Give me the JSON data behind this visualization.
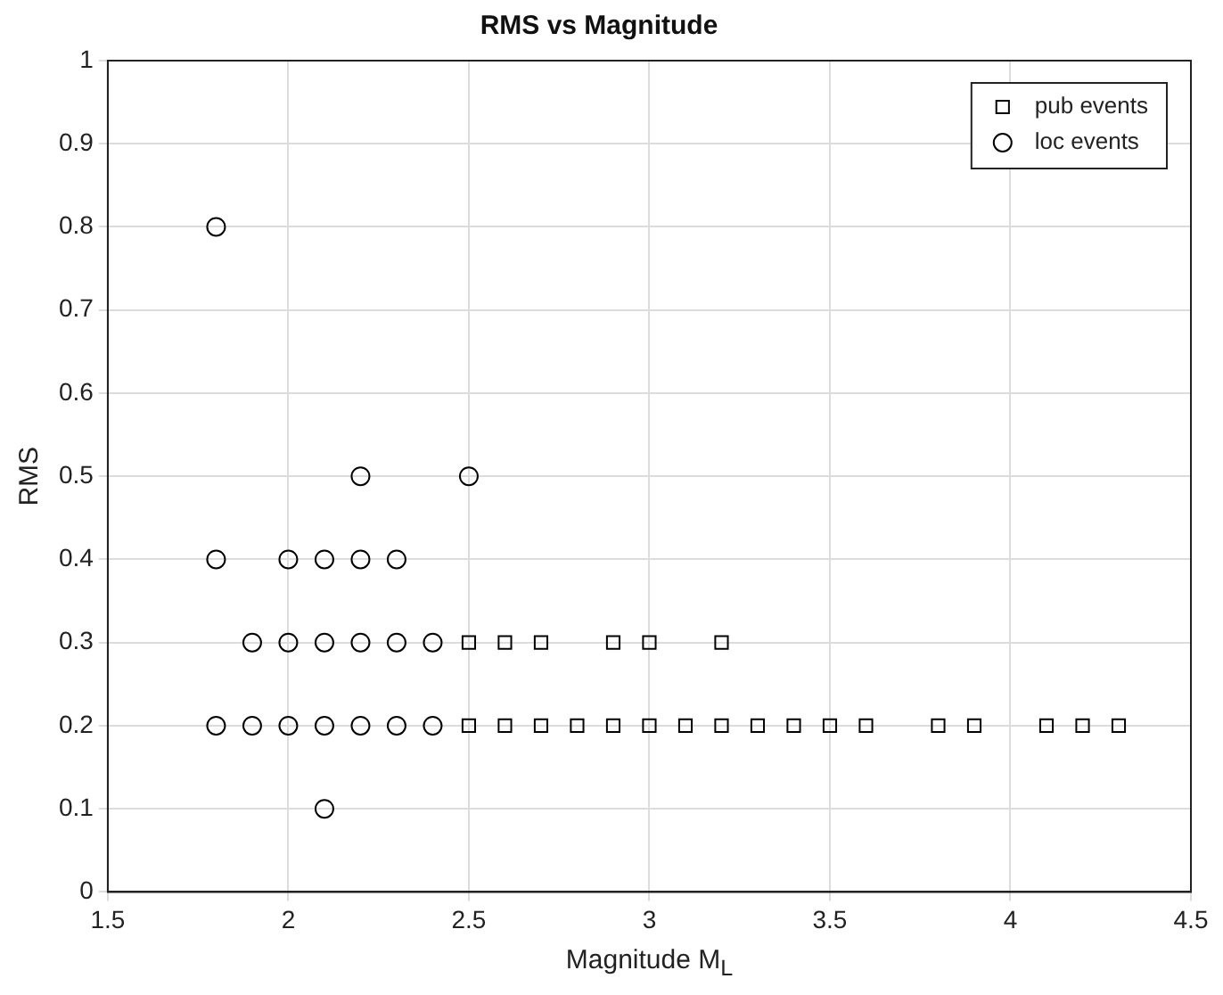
{
  "chart_data": {
    "type": "scatter",
    "title": "RMS vs Magnitude",
    "xlabel": "Magnitude M$_{L}$",
    "ylabel": "RMS",
    "xlim": [
      1.5,
      4.5
    ],
    "xticks": [
      1.5,
      2,
      2.5,
      3,
      3.5,
      4,
      4.5
    ],
    "ylim": [
      0,
      1
    ],
    "yticks": [
      0,
      0.1,
      0.2,
      0.3,
      0.4,
      0.5,
      0.6,
      0.7,
      0.8,
      0.9,
      1
    ],
    "grid": true,
    "legend": "top right",
    "series": [
      {
        "name": "pub events",
        "color": "#000000",
        "marker": "square",
        "x": [
          2.5,
          2.6,
          2.7,
          2.9,
          3.0,
          3.2,
          2.5,
          2.6,
          2.7,
          2.8,
          2.9,
          3.0,
          3.1,
          3.2,
          3.3,
          3.4,
          3.5,
          3.6,
          3.8,
          3.9,
          4.1,
          4.2,
          4.3
        ],
        "values": [
          0.3,
          0.3,
          0.3,
          0.3,
          0.3,
          0.3,
          0.2,
          0.2,
          0.2,
          0.2,
          0.2,
          0.2,
          0.2,
          0.2,
          0.2,
          0.2,
          0.2,
          0.2,
          0.2,
          0.2,
          0.2,
          0.2,
          0.2
        ]
      },
      {
        "name": "loc events",
        "color": "#000000",
        "marker": "circle",
        "x": [
          1.8,
          2.2,
          2.5,
          1.8,
          2.0,
          2.1,
          2.2,
          2.3,
          1.9,
          2.0,
          2.1,
          2.2,
          2.3,
          2.4,
          1.8,
          1.9,
          2.0,
          2.1,
          2.2,
          2.3,
          2.4,
          2.1
        ],
        "values": [
          0.8,
          0.5,
          0.5,
          0.4,
          0.4,
          0.4,
          0.4,
          0.4,
          0.3,
          0.3,
          0.3,
          0.3,
          0.3,
          0.3,
          0.2,
          0.2,
          0.2,
          0.2,
          0.2,
          0.2,
          0.2,
          0.1
        ]
      }
    ]
  }
}
